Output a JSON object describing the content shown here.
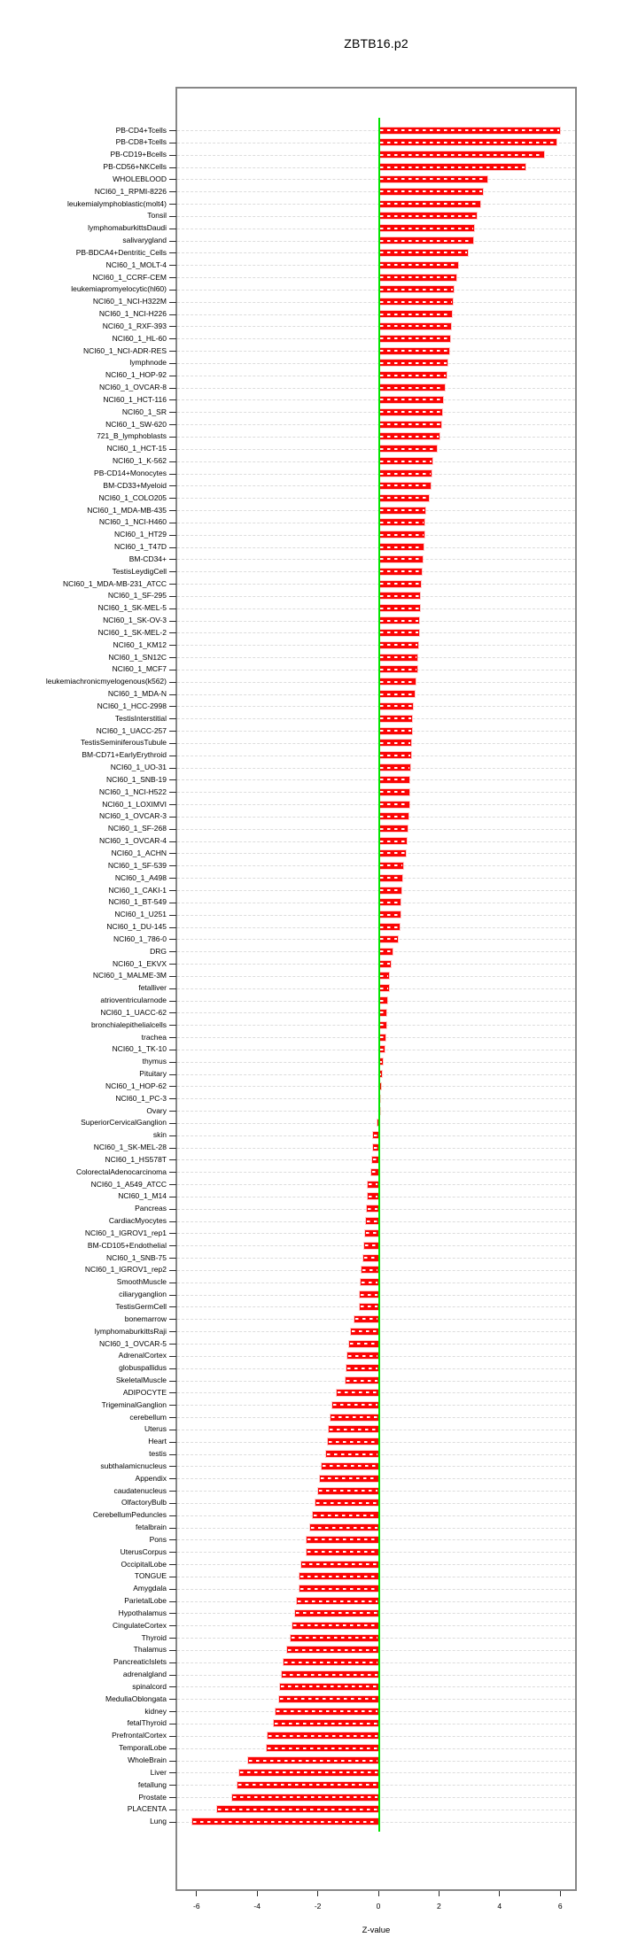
{
  "colors": {
    "bar": "#fb0505",
    "bar_stripe": "#ffffff",
    "zero_line": "#00e400",
    "grid_line": "#dcdcdc",
    "plot_border": "#878787",
    "text": "#000000"
  },
  "chart_data": {
    "type": "bar",
    "orientation": "horizontal",
    "title": "ZBTB16.p2",
    "xlabel": "Z-value",
    "ylabel": "",
    "xlim": [
      -6.6,
      6.5
    ],
    "grid": "dashed horizontal line per category",
    "legend": "none",
    "zero_reference_line": 0,
    "x_ticks": [
      -6,
      -4,
      -2,
      0,
      2,
      4,
      6
    ],
    "x_tick_labels": [
      "-6",
      "-4",
      "-2",
      "0",
      "2",
      "4",
      "6"
    ],
    "categories": [
      "PB-CD4+Tcells",
      "PB-CD8+Tcells",
      "PB-CD19+Bcells",
      "PB-CD56+NKCells",
      "WHOLEBLOOD",
      "NCI60_1_RPMI-8226",
      "leukemialymphoblastic(molt4)",
      "Tonsil",
      "lymphomaburkittsDaudi",
      "salivarygland",
      "PB-BDCA4+Dentritic_Cells",
      "NCI60_1_MOLT-4",
      "NCI60_1_CCRF-CEM",
      "leukemiapromyelocytic(hl60)",
      "NCI60_1_NCI-H322M",
      "NCI60_1_NCI-H226",
      "NCI60_1_RXF-393",
      "NCI60_1_HL-60",
      "NCI60_1_NCI-ADR-RES",
      "lymphnode",
      "NCI60_1_HOP-92",
      "NCI60_1_OVCAR-8",
      "NCI60_1_HCT-116",
      "NCI60_1_SR",
      "NCI60_1_SW-620",
      "721_B_lymphoblasts",
      "NCI60_1_HCT-15",
      "NCI60_1_K-562",
      "PB-CD14+Monocytes",
      "BM-CD33+Myeloid",
      "NCI60_1_COLO205",
      "NCI60_1_MDA-MB-435",
      "NCI60_1_NCI-H460",
      "NCI60_1_HT29",
      "NCI60_1_T47D",
      "BM-CD34+",
      "TestisLeydigCell",
      "NCI60_1_MDA-MB-231_ATCC",
      "NCI60_1_SF-295",
      "NCI60_1_SK-MEL-5",
      "NCI60_1_SK-OV-3",
      "NCI60_1_SK-MEL-2",
      "NCI60_1_KM12",
      "NCI60_1_SN12C",
      "NCI60_1_MCF7",
      "leukemiachronicmyelogenous(k562)",
      "NCI60_1_MDA-N",
      "NCI60_1_HCC-2998",
      "TestisInterstitial",
      "NCI60_1_UACC-257",
      "TestisSeminiferousTubule",
      "BM-CD71+EarlyErythroid",
      "NCI60_1_UO-31",
      "NCI60_1_SNB-19",
      "NCI60_1_NCI-H522",
      "NCI60_1_LOXIMVI",
      "NCI60_1_OVCAR-3",
      "NCI60_1_SF-268",
      "NCI60_1_OVCAR-4",
      "NCI60_1_ACHN",
      "NCI60_1_SF-539",
      "NCI60_1_A498",
      "NCI60_1_CAKI-1",
      "NCI60_1_BT-549",
      "NCI60_1_U251",
      "NCI60_1_DU-145",
      "NCI60_1_786-0",
      "DRG",
      "NCI60_1_EKVX",
      "NCI60_1_MALME-3M",
      "fetalliver",
      "atrioventricularnode",
      "NCI60_1_UACC-62",
      "bronchialepithelialcells",
      "trachea",
      "NCI60_1_TK-10",
      "thymus",
      "Pituitary",
      "NCI60_1_HOP-62",
      "NCI60_1_PC-3",
      "Ovary",
      "SuperiorCervicalGanglion",
      "skin",
      "NCI60_1_SK-MEL-28",
      "NCI60_1_HS578T",
      "ColorectalAdenocarcinoma",
      "NCI60_1_A549_ATCC",
      "NCI60_1_M14",
      "Pancreas",
      "CardiacMyocytes",
      "NCI60_1_IGROV1_rep1",
      "BM-CD105+Endothelial",
      "NCI60_1_SNB-75",
      "NCI60_1_IGROV1_rep2",
      "SmoothMuscle",
      "ciliaryganglion",
      "TestisGermCell",
      "bonemarrow",
      "lymphomaburkittsRaji",
      "NCI60_1_OVCAR-5",
      "AdrenalCortex",
      "globuspallidus",
      "SkeletalMuscle",
      "ADIPOCYTE",
      "TrigeminalGanglion",
      "cerebellum",
      "Uterus",
      "Heart",
      "testis",
      "subthalamicnucleus",
      "Appendix",
      "caudatenucleus",
      "OlfactoryBulb",
      "CerebellumPeduncles",
      "fetalbrain",
      "Pons",
      "UterusCorpus",
      "OccipitalLobe",
      "TONGUE",
      "Amygdala",
      "ParietalLobe",
      "Hypothalamus",
      "CingulateCortex",
      "Thyroid",
      "Thalamus",
      "PancreaticIslets",
      "adrenalgland",
      "spinalcord",
      "MedullaOblongata",
      "kidney",
      "fetalThyroid",
      "PrefrontalCortex",
      "TemporalLobe",
      "WholeBrain",
      "Liver",
      "fetallung",
      "Prostate",
      "PLACENTA",
      "Lung"
    ],
    "values": [
      5.97,
      5.86,
      5.45,
      4.83,
      3.58,
      3.43,
      3.32,
      3.21,
      3.14,
      3.09,
      2.93,
      2.6,
      2.53,
      2.46,
      2.43,
      2.39,
      2.36,
      2.33,
      2.31,
      2.24,
      2.21,
      2.15,
      2.1,
      2.08,
      2.05,
      1.99,
      1.9,
      1.76,
      1.71,
      1.7,
      1.64,
      1.53,
      1.5,
      1.49,
      1.46,
      1.42,
      1.39,
      1.37,
      1.35,
      1.33,
      1.32,
      1.31,
      1.29,
      1.27,
      1.25,
      1.21,
      1.16,
      1.11,
      1.09,
      1.07,
      1.06,
      1.05,
      1.02,
      1.0,
      0.99,
      0.98,
      0.96,
      0.93,
      0.91,
      0.87,
      0.78,
      0.76,
      0.72,
      0.71,
      0.69,
      0.66,
      0.61,
      0.44,
      0.39,
      0.33,
      0.31,
      0.26,
      0.24,
      0.22,
      0.21,
      0.17,
      0.13,
      0.1,
      0.06,
      0.04,
      0.01,
      -0.02,
      -0.18,
      -0.19,
      -0.2,
      -0.23,
      -0.35,
      -0.36,
      -0.38,
      -0.41,
      -0.43,
      -0.47,
      -0.5,
      -0.57,
      -0.58,
      -0.61,
      -0.63,
      -0.78,
      -0.91,
      -0.97,
      -1.02,
      -1.06,
      -1.08,
      -1.39,
      -1.51,
      -1.58,
      -1.63,
      -1.68,
      -1.74,
      -1.87,
      -1.92,
      -1.98,
      -2.08,
      -2.17,
      -2.26,
      -2.36,
      -2.38,
      -2.55,
      -2.59,
      -2.61,
      -2.69,
      -2.76,
      -2.85,
      -2.91,
      -3.01,
      -3.13,
      -3.19,
      -3.24,
      -3.28,
      -3.39,
      -3.44,
      -3.67,
      -3.7,
      -4.29,
      -4.58,
      -4.65,
      -4.83,
      -5.31,
      -6.13
    ]
  }
}
